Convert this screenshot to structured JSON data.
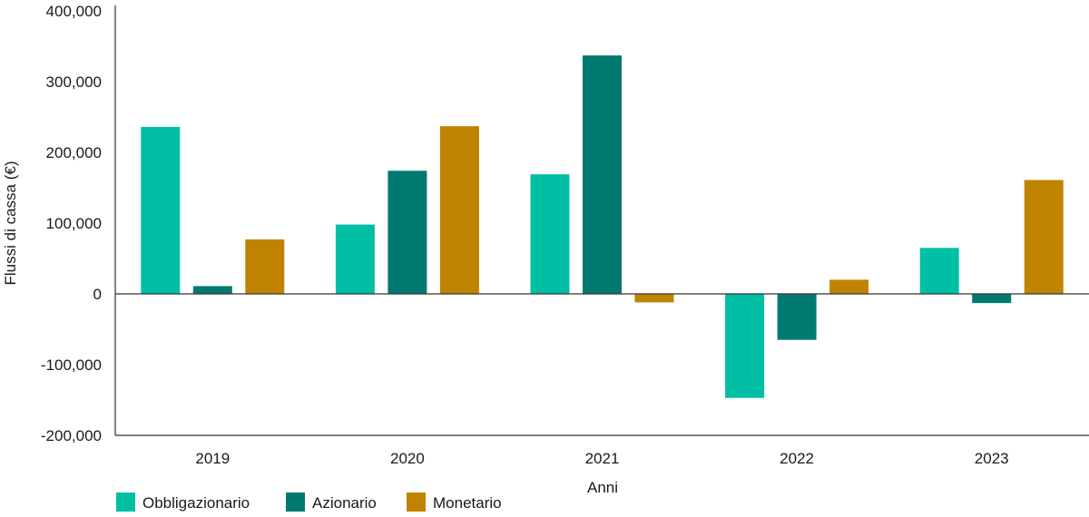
{
  "chart_data": {
    "type": "bar",
    "title": "",
    "xlabel": "Anni",
    "ylabel": "Flussi di cassa (€)",
    "categories": [
      "2019",
      "2020",
      "2021",
      "2022",
      "2023"
    ],
    "ylim": [
      -200000,
      400000
    ],
    "yticks": [
      400000,
      300000,
      200000,
      100000,
      0,
      -100000,
      -200000
    ],
    "ytick_labels": [
      "400,000",
      "300,000",
      "200,000",
      "100,000",
      "0",
      "-100,000",
      "-200,000"
    ],
    "grid": false,
    "legend_position": "bottom-left",
    "series": [
      {
        "name": "Obbligazionario",
        "color": "#00BFA5",
        "values": [
          236000,
          98000,
          169000,
          -147000,
          65000
        ]
      },
      {
        "name": "Azionario",
        "color": "#007A70",
        "values": [
          11000,
          174000,
          337000,
          -65000,
          -13000
        ]
      },
      {
        "name": "Monetario",
        "color": "#C08300",
        "values": [
          77000,
          237000,
          -12000,
          20000,
          161000
        ]
      }
    ]
  }
}
